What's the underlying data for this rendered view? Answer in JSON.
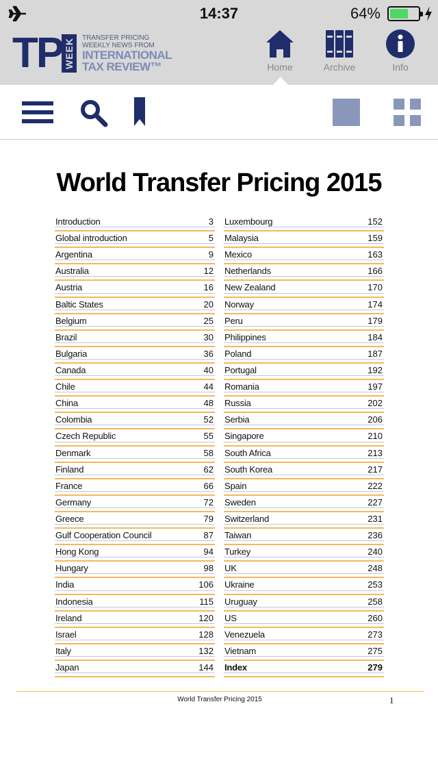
{
  "status_bar": {
    "time": "14:37",
    "battery_percent": "64%",
    "battery_level": 0.64,
    "airplane_icon": "airplane-icon",
    "charging_icon": "bolt-icon"
  },
  "logo": {
    "tp": "TP",
    "week": "WEEK",
    "tagline_1": "TRANSFER PRICING",
    "tagline_2": "WEEKLY NEWS FROM",
    "brand_1": "INTERNATIONAL",
    "brand_2": "TAX REVIEW™"
  },
  "nav": {
    "home": "Home",
    "archive": "Archive",
    "info": "Info",
    "active": "Home"
  },
  "toolbar": {
    "menu_icon": "hamburger-menu-icon",
    "search_icon": "search-icon",
    "bookmark_icon": "bookmark-icon",
    "single_page_icon": "single-page-view-icon",
    "grid_icon": "grid-view-icon"
  },
  "colors": {
    "brand_navy": "#1f2d6b",
    "header_grey": "#d8d8d8",
    "rule_orange": "#f5b85a",
    "view_icon": "#8a97bb"
  },
  "page": {
    "title": "World Transfer Pricing 2015",
    "left_column": [
      {
        "name": "Introduction",
        "page": "3"
      },
      {
        "name": "Global introduction",
        "page": "5"
      },
      {
        "name": "Argentina",
        "page": "9"
      },
      {
        "name": "Australia",
        "page": "12"
      },
      {
        "name": "Austria",
        "page": "16"
      },
      {
        "name": "Baltic States",
        "page": "20"
      },
      {
        "name": "Belgium",
        "page": "25"
      },
      {
        "name": "Brazil",
        "page": "30"
      },
      {
        "name": "Bulgaria",
        "page": "36"
      },
      {
        "name": "Canada",
        "page": "40"
      },
      {
        "name": "Chile",
        "page": "44"
      },
      {
        "name": "China",
        "page": "48"
      },
      {
        "name": "Colombia",
        "page": "52"
      },
      {
        "name": "Czech Republic",
        "page": "55"
      },
      {
        "name": "Denmark",
        "page": "58"
      },
      {
        "name": "Finland",
        "page": "62"
      },
      {
        "name": "France",
        "page": "66"
      },
      {
        "name": "Germany",
        "page": "72"
      },
      {
        "name": "Greece",
        "page": "79"
      },
      {
        "name": "Gulf Cooperation Council",
        "page": "87"
      },
      {
        "name": "Hong Kong",
        "page": "94"
      },
      {
        "name": "Hungary",
        "page": "98"
      },
      {
        "name": "India",
        "page": "106"
      },
      {
        "name": "Indonesia",
        "page": "115"
      },
      {
        "name": "Ireland",
        "page": "120"
      },
      {
        "name": "Israel",
        "page": "128"
      },
      {
        "name": "Italy",
        "page": "132"
      },
      {
        "name": "Japan",
        "page": "144"
      }
    ],
    "right_column": [
      {
        "name": "Luxembourg",
        "page": "152"
      },
      {
        "name": "Malaysia",
        "page": "159"
      },
      {
        "name": "Mexico",
        "page": "163"
      },
      {
        "name": "Netherlands",
        "page": "166"
      },
      {
        "name": "New Zealand",
        "page": "170"
      },
      {
        "name": "Norway",
        "page": "174"
      },
      {
        "name": "Peru",
        "page": "179"
      },
      {
        "name": "Philippines",
        "page": "184"
      },
      {
        "name": "Poland",
        "page": "187"
      },
      {
        "name": "Portugal",
        "page": "192"
      },
      {
        "name": "Romania",
        "page": "197"
      },
      {
        "name": "Russia",
        "page": "202"
      },
      {
        "name": "Serbia",
        "page": "206"
      },
      {
        "name": "Singapore",
        "page": "210"
      },
      {
        "name": "South Africa",
        "page": "213"
      },
      {
        "name": "South Korea",
        "page": "217"
      },
      {
        "name": "Spain",
        "page": "222"
      },
      {
        "name": "Sweden",
        "page": "227"
      },
      {
        "name": "Switzerland",
        "page": "231"
      },
      {
        "name": "Taiwan",
        "page": "236"
      },
      {
        "name": "Turkey",
        "page": "240"
      },
      {
        "name": "UK",
        "page": "248"
      },
      {
        "name": "Ukraine",
        "page": "253"
      },
      {
        "name": "Uruguay",
        "page": "258"
      },
      {
        "name": "US",
        "page": "260"
      },
      {
        "name": "Venezuela",
        "page": "273"
      },
      {
        "name": "Vietnam",
        "page": "275"
      },
      {
        "name": "Index",
        "page": "279",
        "bold": true
      }
    ],
    "footer_title": "World Transfer Pricing 2015",
    "footer_page": "1"
  }
}
